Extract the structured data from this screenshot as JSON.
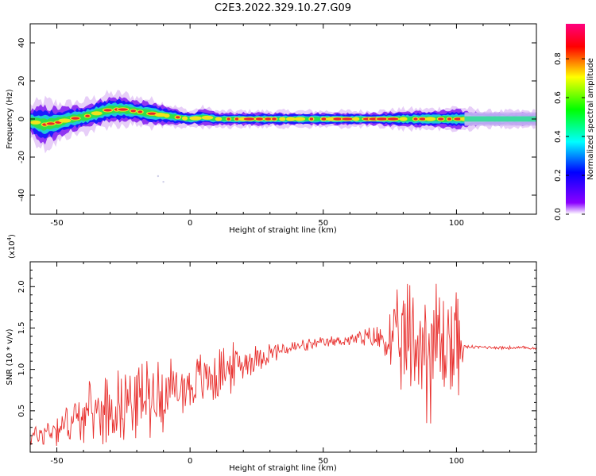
{
  "figure": {
    "title": "C2E3.2022.329.10.27.G09"
  },
  "colorbar": {
    "label": "Normalized spectral amplitude",
    "ticks": [
      "0.0",
      "0.2",
      "0.4",
      "0.6",
      "0.8"
    ],
    "colors": [
      "#ffffff",
      "#8b00ff",
      "#0000ff",
      "#00ffff",
      "#00ff00",
      "#ffff00",
      "#ff0000",
      "#ff007f"
    ]
  },
  "chart_data": [
    {
      "type": "heatmap",
      "xlabel": "Height of straight line (km)",
      "ylabel": "Frequency (Hz)",
      "xlim": [
        -60,
        130
      ],
      "ylim": [
        -50,
        50
      ],
      "x_ticks": [
        "-50",
        "0",
        "50",
        "100"
      ],
      "y_ticks": [
        "-40",
        "-20",
        "0",
        "20",
        "40"
      ],
      "ridge": {
        "x": [
          -60,
          -55,
          -50,
          -45,
          -40,
          -35,
          -30,
          -25,
          -20,
          -15,
          -10,
          -5,
          0,
          5,
          10,
          20,
          30,
          40,
          50,
          60,
          70,
          80,
          90,
          100,
          110,
          120,
          130
        ],
        "freq": [
          -1,
          -3,
          -2,
          0,
          1,
          3,
          5,
          5,
          4,
          3,
          2,
          1,
          0,
          1,
          0,
          0,
          0,
          0,
          0,
          0,
          0,
          0,
          0,
          0,
          0,
          0,
          0
        ],
        "halfwidth": [
          4,
          6,
          5,
          4,
          4,
          4,
          4,
          4,
          3.5,
          3.5,
          3,
          2.5,
          2,
          2.5,
          2,
          2,
          2,
          2,
          2,
          2,
          2,
          2.5,
          2.5,
          3,
          2,
          2,
          2
        ]
      }
    },
    {
      "type": "line",
      "xlabel": "Height of straight line (km)",
      "ylabel": "SNR (10 * v/v)",
      "y_multiplier": "(x10",
      "y_multiplier_exp": "4",
      "y_multiplier_close": ")",
      "xlim": [
        -60,
        130
      ],
      "ylim": [
        0,
        2.3
      ],
      "x_ticks": [
        "-50",
        "0",
        "50",
        "100"
      ],
      "y_ticks": [
        "0.5",
        "1.0",
        "1.5",
        "2.0"
      ],
      "series": [
        {
          "color": "#e8312f",
          "trend_x": [
            -60,
            -50,
            -40,
            -30,
            -20,
            -10,
            0,
            10,
            20,
            30,
            40,
            50,
            60,
            70,
            80,
            90,
            100,
            103,
            110,
            120,
            130
          ],
          "trend_y": [
            0.18,
            0.3,
            0.45,
            0.55,
            0.65,
            0.72,
            0.8,
            0.95,
            1.08,
            1.2,
            1.27,
            1.32,
            1.36,
            1.38,
            1.3,
            1.3,
            1.32,
            1.27,
            1.27,
            1.26,
            1.26
          ],
          "noise_x": [
            -60,
            -50,
            -40,
            -30,
            -20,
            -10,
            0,
            10,
            20,
            30,
            40,
            50,
            60,
            70,
            75,
            80,
            85,
            90,
            95,
            100,
            103,
            110,
            130
          ],
          "noise_amp": [
            0.12,
            0.2,
            0.28,
            0.38,
            0.42,
            0.4,
            0.3,
            0.35,
            0.2,
            0.12,
            0.08,
            0.06,
            0.07,
            0.15,
            0.35,
            0.65,
            0.85,
            0.85,
            0.8,
            0.75,
            0.02,
            0.02,
            0.02
          ]
        }
      ]
    }
  ]
}
